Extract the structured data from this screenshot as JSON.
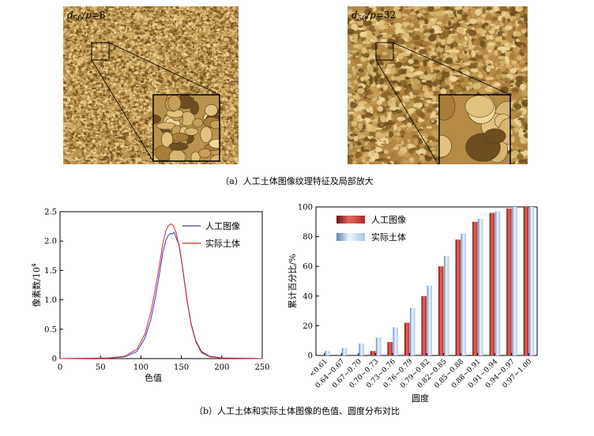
{
  "figure": {
    "panel_a": {
      "caption": "（a）人工土体图像纹理特征及局部放大",
      "left": {
        "label_d": "d",
        "label_sub": "50",
        "label_p": "/p",
        "label_val": "=8",
        "base_color": "#b9924f"
      },
      "right": {
        "label_d": "d",
        "label_sub": "50",
        "label_p": "/p",
        "label_val": "=32",
        "base_color": "#b48a45"
      }
    },
    "panel_b": {
      "caption": "（b）人工土体和实际土体图像的色值、圆度分布对比"
    }
  },
  "chart_data": [
    {
      "type": "line",
      "xlabel": "色值",
      "ylabel": "像素数/10",
      "ylabel_sup": "4",
      "xlim": [
        0,
        250
      ],
      "ylim": [
        0,
        2.5
      ],
      "xticks": [
        "0",
        "50",
        "100",
        "150",
        "200",
        "250"
      ],
      "yticks": [
        "0",
        "0.5",
        "1.0",
        "1.5",
        "2.0",
        "2.5"
      ],
      "legend_position": "top-right",
      "series": [
        {
          "name": "人工图像",
          "color": "#3a3aa8",
          "x": [
            0,
            60,
            80,
            95,
            105,
            112,
            118,
            123,
            127,
            131,
            134,
            137,
            139,
            141,
            143,
            145,
            147,
            150,
            153,
            157,
            162,
            168,
            175,
            185,
            200,
            250
          ],
          "y": [
            0,
            0.01,
            0.03,
            0.12,
            0.35,
            0.65,
            1.05,
            1.45,
            1.8,
            2.02,
            2.1,
            2.13,
            2.12,
            2.15,
            2.08,
            2.0,
            1.95,
            1.7,
            1.4,
            1.0,
            0.6,
            0.3,
            0.12,
            0.04,
            0.01,
            0
          ]
        },
        {
          "name": "实际土体",
          "color": "#d62c2c",
          "x": [
            0,
            60,
            80,
            95,
            105,
            112,
            118,
            123,
            127,
            131,
            134,
            137,
            139,
            141,
            144,
            147,
            150,
            153,
            157,
            162,
            168,
            175,
            185,
            200,
            250
          ],
          "y": [
            0,
            0.01,
            0.04,
            0.16,
            0.42,
            0.78,
            1.2,
            1.6,
            1.95,
            2.18,
            2.26,
            2.29,
            2.28,
            2.24,
            2.12,
            1.92,
            1.68,
            1.38,
            0.98,
            0.58,
            0.28,
            0.1,
            0.03,
            0.01,
            0
          ]
        }
      ]
    },
    {
      "type": "bar",
      "xlabel": "圆度",
      "ylabel": "累计百分比/%",
      "ylim": [
        0,
        100
      ],
      "yticks": [
        "0",
        "20",
        "40",
        "60",
        "80",
        "100"
      ],
      "legend_position": "top-left",
      "categories": [
        "<0.61",
        "0.64~0.67",
        "0.67~0.70",
        "0.70~0.73",
        "0.73~0.76",
        "0.76~0.79",
        "0.79~0.82",
        "0.82~0.85",
        "0.85~0.88",
        "0.88~0.91",
        "0.91~0.94",
        "0.94~0.97",
        "0.97~1.00"
      ],
      "series": [
        {
          "name": "人工图像",
          "color": "#b22a2a",
          "values": [
            0,
            0,
            0,
            3,
            9,
            22,
            40,
            60,
            78,
            90,
            96,
            99,
            100
          ]
        },
        {
          "name": "实际土体",
          "color": "#a9c6e3",
          "values": [
            3,
            5,
            8,
            12,
            19,
            32,
            47,
            67,
            82,
            92,
            97,
            100,
            100
          ]
        }
      ]
    }
  ]
}
